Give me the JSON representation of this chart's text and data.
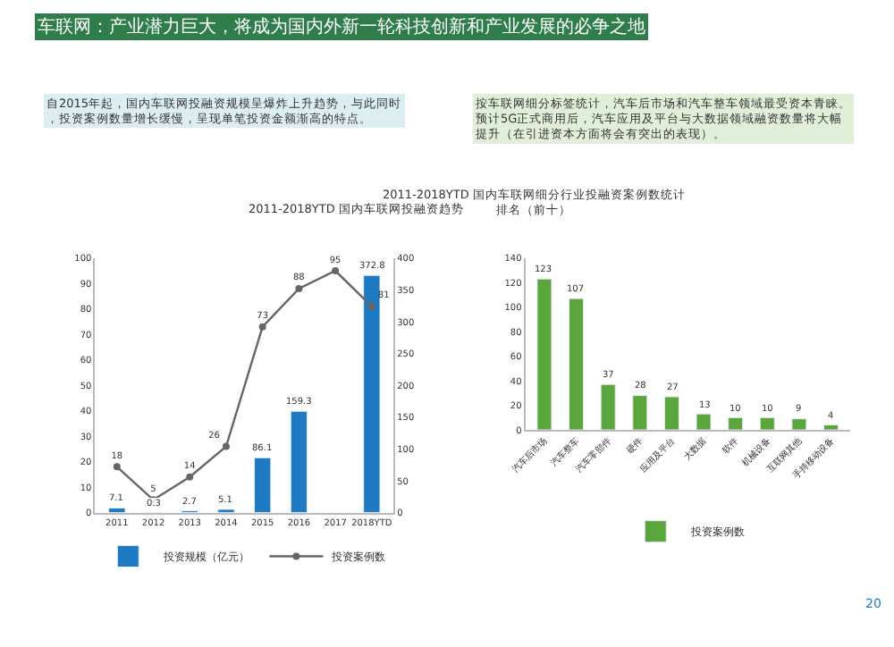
{
  "chart_data": [
    {
      "type": "bar",
      "title": "2011-2018YTD 国内车联网投融资趋势",
      "subtitle": "自2015年起，国内车联网投融资规模呈爆炸上升趋势，与此同时，投资案例数量增长缓慢，呈现单笔投资金额渐高的特点。",
      "annotations": [
        "车联网：产业潜力巨大，将成为国内外新一轮科技创新和产业发展的必争之地"
      ],
      "categories": [
        "2011",
        "2012",
        "2013",
        "2014",
        "2015",
        "2016",
        "2017",
        "2018YTD"
      ],
      "series": [
        {
          "name": "投资规模（亿元）",
          "type": "bar",
          "axis": "y2",
          "color": "#1f7ac4",
          "values": [
            7.1,
            0.3,
            2.7,
            5.1,
            86.1,
            159.3,
            null,
            372.8
          ]
        },
        {
          "name": "投资案例数",
          "type": "line",
          "axis": "y",
          "color": "#666666",
          "marker": "circle",
          "values": [
            18,
            5,
            14,
            26,
            73,
            88,
            95,
            81
          ]
        }
      ],
      "ylim": [
        0,
        100
      ],
      "yticks": [
        0,
        10,
        20,
        30,
        40,
        50,
        60,
        70,
        80,
        90,
        100
      ],
      "y2lim": [
        0,
        400
      ],
      "y2ticks": [
        0,
        50,
        100,
        150,
        200,
        250,
        300,
        350,
        400
      ],
      "data_labels": true,
      "legend": "bottom"
    },
    {
      "type": "bar",
      "title": "2011-2018YTD 国内车联网细分行业投融资案例数统计排名（前十）",
      "subtitle": "按车联网细分标签统计，汽车后市场和汽车整车领域最受资本青睐。预计5G正式商用后，汽车应用及平台与大数据领域融资数量将大幅提升（在引进资本方面将会有突出的表现）。",
      "annotations": [
        "20"
      ],
      "categories": [
        "汽车后市场",
        "汽车整车",
        "汽车零部件",
        "硬件",
        "应用及平台",
        "大数据",
        "软件",
        "机械设备",
        "互联网其他",
        "手持移动设备"
      ],
      "series": [
        {
          "name": "投资案例数",
          "color": "#5aa63c",
          "values": [
            123,
            107,
            37,
            28,
            27,
            13,
            10,
            10,
            9,
            4
          ]
        }
      ],
      "ylim": [
        0,
        140
      ],
      "yticks": [
        0,
        20,
        40,
        60,
        80,
        100,
        120,
        140
      ],
      "data_labels": true,
      "legend": "bottom"
    }
  ]
}
